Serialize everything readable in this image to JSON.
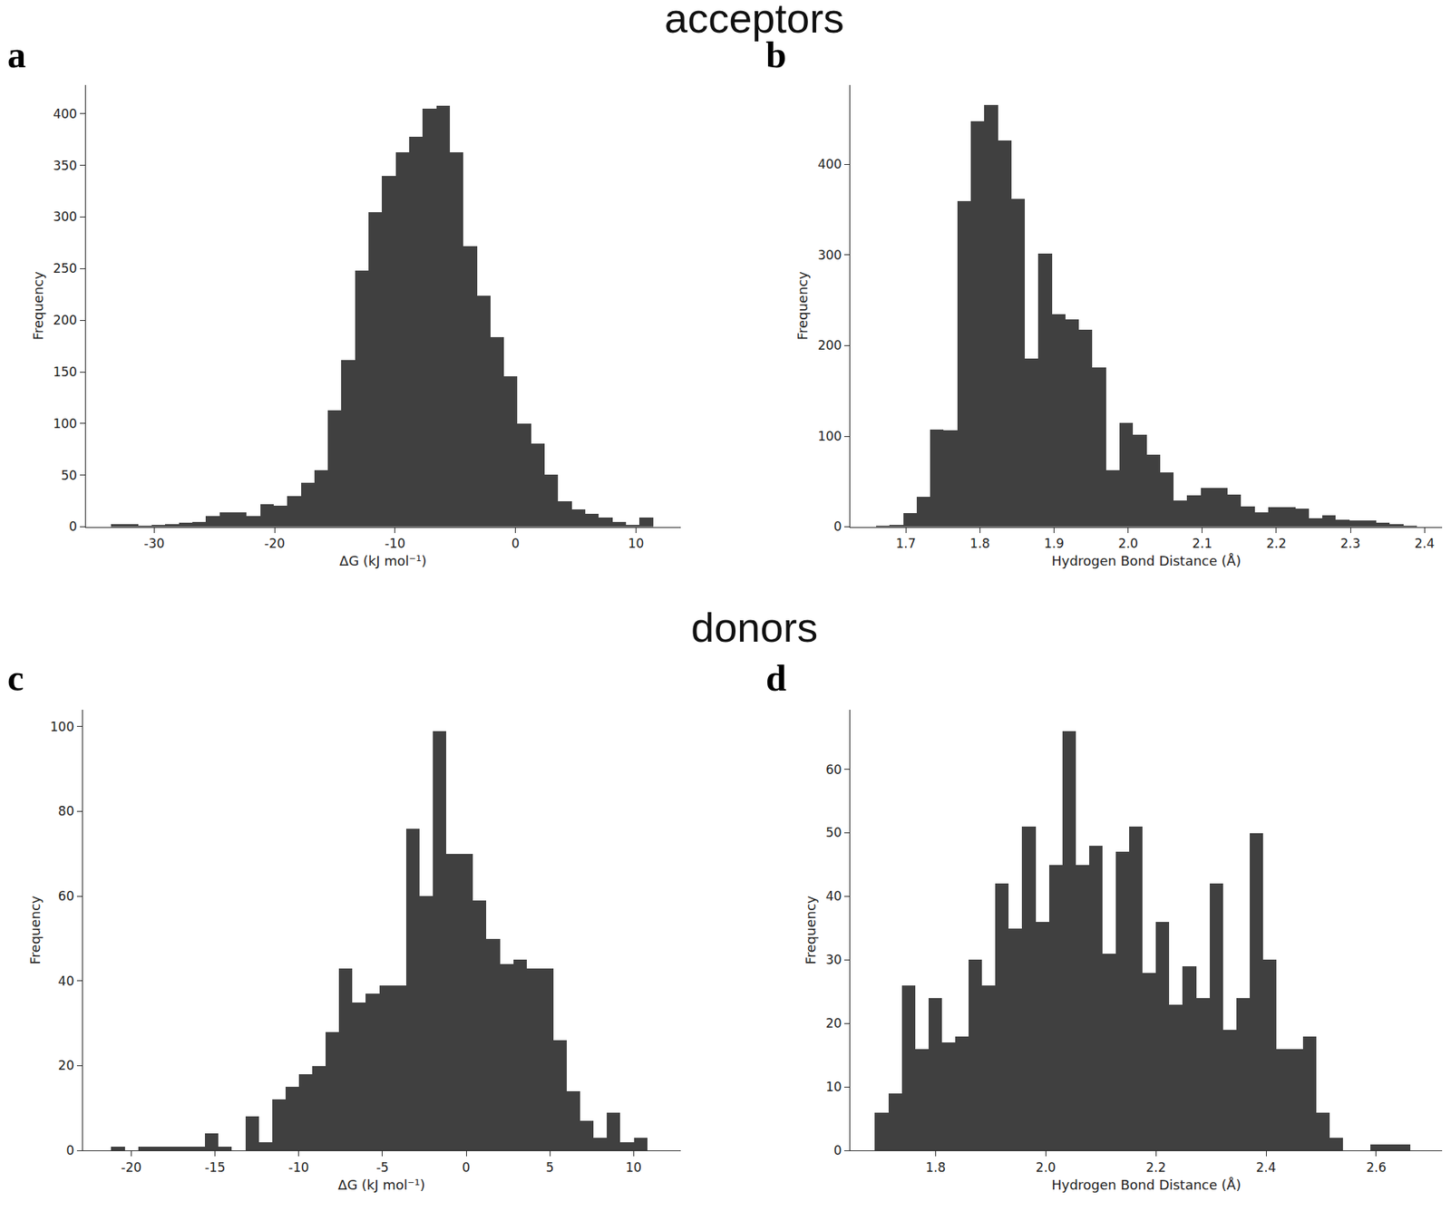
{
  "headings": [
    "acceptors",
    "donors"
  ],
  "chart_data": [
    {
      "type": "histogram",
      "title": "a",
      "color": "#404040",
      "grid": false,
      "x_label": "ΔG (kJ mol⁻¹)",
      "y_label": "Frequency",
      "bins": [
        -33.6,
        -32.475,
        -31.35,
        -30.225,
        -29.1,
        -27.975,
        -26.85,
        -25.725,
        -24.6,
        -23.475,
        -22.35,
        -21.225,
        -20.1,
        -18.975,
        -17.85,
        -16.725,
        -15.6,
        -14.475,
        -13.35,
        -12.225,
        -11.1,
        -9.975,
        -8.85,
        -7.725,
        -6.6,
        -5.475,
        -4.35,
        -3.225,
        -2.1,
        -0.975,
        0.15,
        1.275,
        2.4,
        3.525,
        4.65,
        5.775,
        6.9,
        8.025,
        9.15,
        10.275,
        11.4
      ],
      "values": [
        3,
        3,
        1,
        2,
        3,
        4,
        5,
        11,
        14,
        14,
        11,
        22,
        21,
        30,
        43,
        55,
        113,
        162,
        248,
        305,
        340,
        363,
        378,
        405,
        408,
        363,
        272,
        224,
        184,
        146,
        100,
        81,
        51,
        25,
        17,
        13,
        9,
        5,
        2,
        9
      ],
      "xlim": [
        -35.7,
        13.7
      ],
      "xticks": [
        -30,
        -20,
        -10,
        0,
        10
      ],
      "ylim": [
        0,
        428
      ],
      "yticks": [
        0,
        50,
        100,
        150,
        200,
        250,
        300,
        350,
        400
      ]
    },
    {
      "type": "histogram",
      "title": "b",
      "color": "#404040",
      "grid": false,
      "x_label": "Hydrogen Bond Distance (Å)",
      "y_label": "Frequency",
      "bins": [
        1.66,
        1.67825,
        1.6965,
        1.71475,
        1.733,
        1.75125,
        1.7695,
        1.78775,
        1.806,
        1.82425,
        1.8425,
        1.86075,
        1.879,
        1.89725,
        1.9155,
        1.93375,
        1.952,
        1.97025,
        1.9885,
        2.00675,
        2.025,
        2.04325,
        2.0615,
        2.07975,
        2.098,
        2.11625,
        2.1345,
        2.15275,
        2.171,
        2.18925,
        2.2075,
        2.22575,
        2.244,
        2.26225,
        2.2805,
        2.29875,
        2.317,
        2.33525,
        2.3535,
        2.37175,
        2.39
      ],
      "values": [
        1,
        2,
        15,
        33,
        108,
        107,
        360,
        448,
        466,
        427,
        362,
        186,
        302,
        235,
        229,
        218,
        176,
        63,
        115,
        102,
        80,
        60,
        29,
        35,
        43,
        43,
        36,
        23,
        16,
        22,
        22,
        20,
        10,
        13,
        8,
        7,
        7,
        5,
        3,
        1
      ],
      "xlim": [
        1.625,
        2.424
      ],
      "xticks": [
        1.7,
        1.8,
        1.9,
        {
          "value": 2,
          "label": "2.0"
        },
        2.1,
        2.2,
        2.3,
        2.4
      ],
      "ylim": [
        0,
        488
      ],
      "yticks": [
        0,
        100,
        200,
        300,
        400
      ]
    },
    {
      "type": "histogram",
      "title": "c",
      "color": "#404040",
      "grid": false,
      "x_label": "ΔG (kJ mol⁻¹)",
      "y_label": "Frequency",
      "bins": [
        -21.2,
        -20.4,
        -19.6,
        -18.8,
        -18.0,
        -17.2,
        -16.4,
        -15.6,
        -14.8,
        -14.0,
        -13.2,
        -12.4,
        -11.6,
        -10.8,
        -10.0,
        -9.2,
        -8.4,
        -7.6,
        -6.8,
        -6.0,
        -5.2,
        -4.4,
        -3.6,
        -2.8,
        -2.0,
        -1.2,
        -0.4,
        0.4,
        1.2,
        2.0,
        2.8,
        3.6,
        4.4,
        5.2,
        6.0,
        6.8,
        7.6,
        8.4,
        9.2,
        10.0,
        10.8
      ],
      "values": [
        1,
        0,
        1,
        1,
        1,
        1,
        1,
        4,
        1,
        0,
        8,
        2,
        12,
        15,
        18,
        20,
        28,
        43,
        35,
        37,
        39,
        39,
        76,
        60,
        99,
        70,
        70,
        59,
        50,
        44,
        45,
        43,
        43,
        26,
        14,
        7,
        3,
        9,
        2,
        3
      ],
      "xlim": [
        -22.9,
        12.8
      ],
      "xticks": [
        -20,
        -15,
        -10,
        -5,
        0,
        5,
        10
      ],
      "ylim": [
        0,
        104
      ],
      "yticks": [
        0,
        20,
        40,
        60,
        80,
        100
      ]
    },
    {
      "type": "histogram",
      "title": "d",
      "color": "#404040",
      "grid": false,
      "x_label": "Hydrogen Bond Distance (Å)",
      "y_label": "Frequency",
      "bins": [
        1.69,
        1.7143,
        1.7386,
        1.7629,
        1.7872,
        1.8115,
        1.8358,
        1.8601,
        1.8844,
        1.9087,
        1.933,
        1.9573,
        1.9816,
        2.0059,
        2.0302,
        2.0545,
        2.0788,
        2.1031,
        2.1274,
        2.1517,
        2.176,
        2.2003,
        2.2246,
        2.2489,
        2.2732,
        2.2975,
        2.3218,
        2.3461,
        2.3704,
        2.3947,
        2.419,
        2.4433,
        2.4676,
        2.4919,
        2.5162,
        2.5405,
        2.5648,
        2.5891,
        2.6134,
        2.6377,
        2.662
      ],
      "values": [
        6,
        9,
        26,
        16,
        24,
        17,
        18,
        30,
        26,
        42,
        35,
        51,
        36,
        45,
        66,
        45,
        48,
        31,
        47,
        51,
        28,
        36,
        23,
        29,
        24,
        42,
        19,
        24,
        50,
        30,
        16,
        16,
        18,
        6,
        2,
        0,
        0,
        1,
        1,
        1
      ],
      "xlim": [
        1.645,
        2.72
      ],
      "xticks": [
        1.8,
        {
          "value": 2,
          "label": "2.0"
        },
        2.2,
        2.4,
        2.6
      ],
      "ylim": [
        0,
        69.4
      ],
      "yticks": [
        0,
        10,
        20,
        30,
        40,
        50,
        60
      ]
    }
  ]
}
